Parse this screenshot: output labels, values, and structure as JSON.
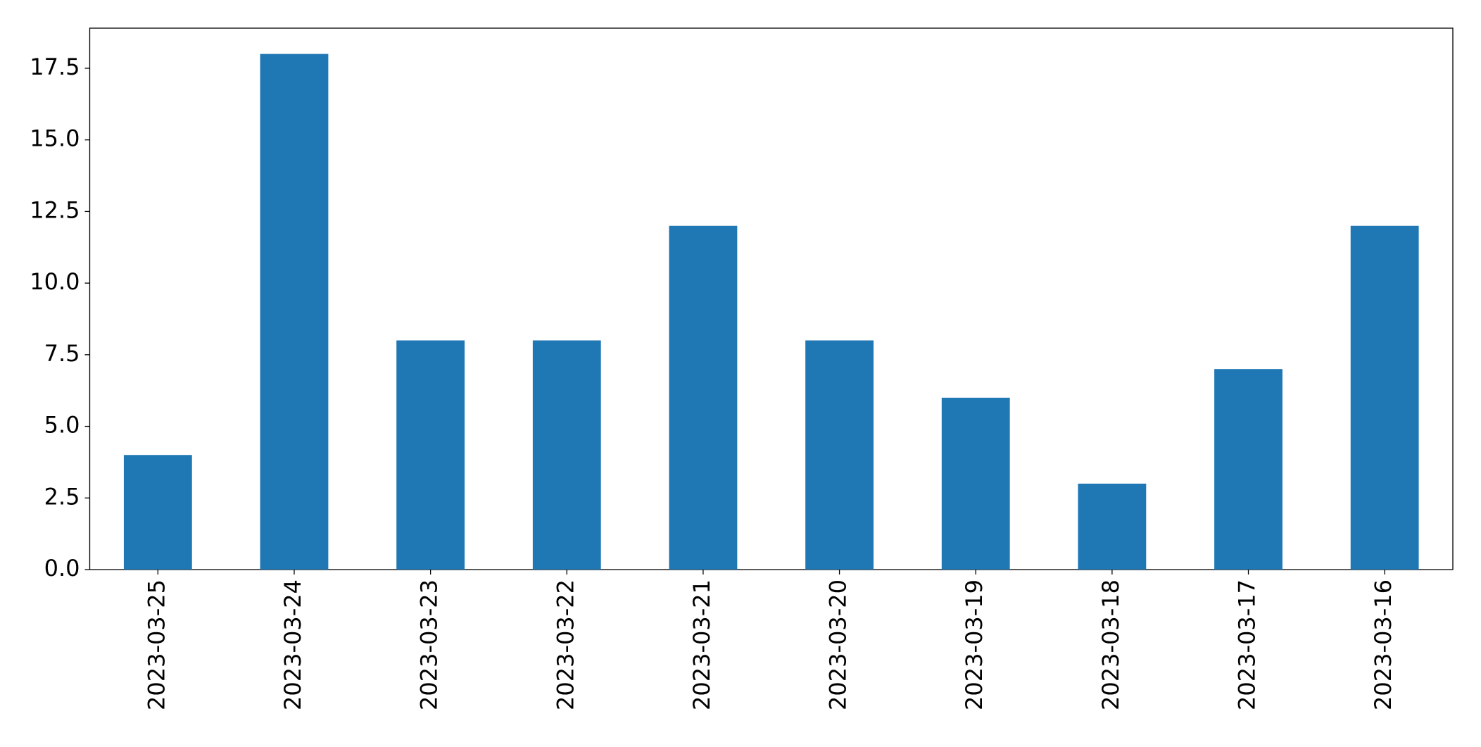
{
  "chart_data": {
    "type": "bar",
    "categories": [
      "2023-03-25",
      "2023-03-24",
      "2023-03-23",
      "2023-03-22",
      "2023-03-21",
      "2023-03-20",
      "2023-03-19",
      "2023-03-18",
      "2023-03-17",
      "2023-03-16"
    ],
    "values": [
      4,
      18,
      8,
      8,
      12,
      8,
      6,
      3,
      7,
      12
    ],
    "color": "#1f77b4",
    "ylim": [
      0,
      18.9
    ],
    "yticks": [
      {
        "value": 0,
        "label": "0.0"
      },
      2.5,
      {
        "value": 5,
        "label": "5.0"
      },
      7.5,
      {
        "value": 10,
        "label": "10.0"
      },
      12.5,
      {
        "value": 15,
        "label": "15.0"
      },
      17.5
    ],
    "grid": false
  }
}
